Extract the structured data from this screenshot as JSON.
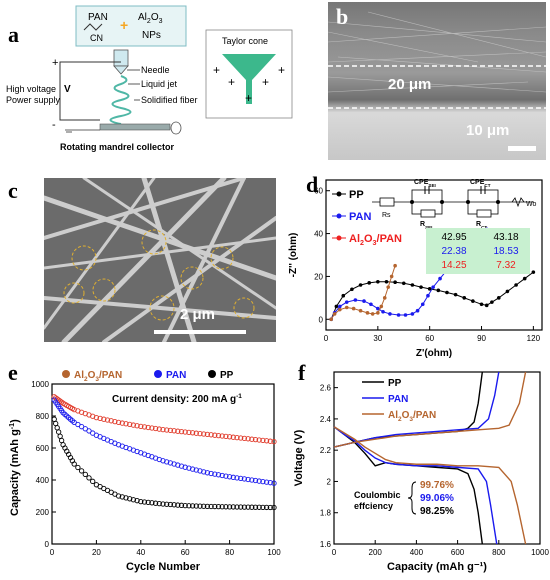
{
  "labels": {
    "a": "a",
    "b": "b",
    "c": "c",
    "d": "d",
    "e": "e",
    "f": "f"
  },
  "panel_a": {
    "pan": "PAN",
    "cn": "CN",
    "plus": "+",
    "al2o3": "Al",
    "al_sub": "2",
    "o": "O",
    "o_sub": "3",
    "nps": "NPs",
    "hv_line1": "High voltage",
    "hv_line2": "Power supply",
    "v": "V",
    "minus": "-",
    "needle": "Needle",
    "liquid_jet": "Liquid jet",
    "solidified_fiber": "Solidified fiber",
    "collector": "Rotating mandrel collector",
    "taylor_cone": "Taylor cone",
    "colors": {
      "pan_box_border": "#7fbcc4",
      "pan_box_bg": "#e7f4f5",
      "cone": "#3cb88c",
      "coil": "#4fb7a6"
    }
  },
  "panel_b": {
    "scale_20": "20 μm",
    "scale_10": "10 μm"
  },
  "panel_c": {
    "scale": "2 μm"
  },
  "panel_d": {
    "chart_data": {
      "type": "line",
      "xlabel": "Z'(ohm)",
      "ylabel": "-Z'' (ohm)",
      "xlim": [
        0,
        125
      ],
      "ylim": [
        -5,
        65
      ],
      "xticks": [
        0,
        30,
        60,
        90,
        120
      ],
      "yticks": [
        0,
        20,
        40,
        60
      ],
      "series": [
        {
          "name": "PP",
          "color": "#000000",
          "marker": "circle",
          "x": [
            3,
            6,
            10,
            15,
            20,
            25,
            30,
            35,
            40,
            45,
            50,
            55,
            60,
            65,
            70,
            75,
            80,
            85,
            90,
            93,
            96,
            100,
            105,
            110,
            115,
            120
          ],
          "y": [
            0,
            6,
            11,
            14,
            16,
            17,
            17.5,
            17.5,
            17.3,
            16.8,
            16,
            15,
            14.2,
            13.5,
            12.5,
            11.5,
            10,
            8.5,
            7,
            6.5,
            8,
            10,
            13,
            16,
            19,
            22
          ]
        },
        {
          "name": "PAN",
          "color": "#1a1aee",
          "marker": "circle",
          "x": [
            3,
            5,
            8,
            12,
            17,
            22,
            26,
            30,
            33,
            37,
            42,
            46,
            50,
            53,
            56,
            59,
            62,
            66,
            70,
            75,
            80,
            85,
            90,
            93
          ],
          "y": [
            0,
            3,
            6,
            8,
            9,
            8.5,
            7,
            5,
            3.5,
            2.5,
            2,
            2,
            2.5,
            4,
            7,
            11,
            15,
            19,
            23,
            27,
            31,
            35,
            39,
            42
          ]
        },
        {
          "name": "Al2O3/PAN",
          "color": "#b5652f",
          "marker": "circle",
          "x": [
            3,
            5,
            8,
            12,
            16,
            20,
            24,
            27,
            30,
            32,
            34,
            36,
            38,
            40
          ],
          "y": [
            0,
            2.5,
            4.5,
            5.5,
            5,
            4,
            3,
            2.5,
            3,
            6,
            10,
            15,
            20,
            25
          ]
        }
      ],
      "legend": [
        "PP",
        "PAN",
        "Al2O3/PAN"
      ]
    },
    "legend_pp": "PP",
    "legend_pan": "PAN",
    "legend_al": "Al",
    "legend_al_sub": "2",
    "legend_o": "O",
    "legend_o_sub": "3",
    "legend_rest": "/PAN",
    "circuit": {
      "rs": "Rs",
      "cpe_sei": "CPE",
      "sei_sub": "SEI",
      "cpe_ct": "CPE",
      "ct_sub": "CT",
      "r_sei": "R",
      "r_sei_sub": "SEI",
      "r_ct": "R",
      "r_ct_sub": "CT",
      "wo": "Wo"
    },
    "table": [
      {
        "sei": "42.95",
        "ct": "43.18",
        "color": "#000000"
      },
      {
        "sei": "22.38",
        "ct": "18.53",
        "color": "#1a1aee"
      },
      {
        "sei": "14.25",
        "ct": "7.32",
        "color": "#ee2020"
      }
    ]
  },
  "panel_e": {
    "chart_data": {
      "type": "scatter",
      "xlabel": "Cycle Number",
      "ylabel": "Capacity (mAh g⁻¹)",
      "xlim": [
        0,
        100
      ],
      "ylim": [
        0,
        1000
      ],
      "xticks": [
        0,
        20,
        40,
        60,
        80,
        100
      ],
      "yticks": [
        0,
        200,
        400,
        600,
        800,
        1000
      ],
      "annotation": "Current density: 200 mA g⁻¹",
      "series": [
        {
          "name": "Al2O3/PAN",
          "color": "#e03a2a",
          "x": [
            1,
            5,
            10,
            20,
            30,
            40,
            50,
            60,
            70,
            80,
            90,
            100
          ],
          "y": [
            920,
            880,
            840,
            790,
            760,
            735,
            715,
            700,
            685,
            670,
            655,
            640
          ]
        },
        {
          "name": "PAN",
          "color": "#1a1aee",
          "x": [
            1,
            5,
            10,
            20,
            30,
            40,
            50,
            60,
            70,
            80,
            90,
            100
          ],
          "y": [
            900,
            820,
            760,
            680,
            620,
            570,
            520,
            480,
            445,
            420,
            400,
            380
          ]
        },
        {
          "name": "PP",
          "color": "#000000",
          "x": [
            1,
            5,
            10,
            20,
            30,
            40,
            50,
            60,
            70,
            80,
            90,
            100
          ],
          "y": [
            780,
            620,
            500,
            370,
            300,
            265,
            250,
            240,
            235,
            232,
            230,
            228
          ]
        }
      ]
    },
    "legend_al": "Al",
    "legend_al_sub": "2",
    "legend_o": "O",
    "legend_o_sub": "3",
    "legend_rest": "/PAN",
    "legend_pan": "PAN",
    "legend_pp": "PP",
    "annotation_main": "Current density: 200 mA g",
    "annotation_sup": "-1",
    "ylabel_main": "Capacity (mAh g",
    "ylabel_sup": "-1",
    "ylabel_end": ")"
  },
  "panel_f": {
    "chart_data": {
      "type": "line",
      "xlabel": "Capacity (mAh g⁻¹)",
      "ylabel": "Voltage (V)",
      "xlim": [
        0,
        1000
      ],
      "ylim": [
        1.6,
        2.7
      ],
      "xticks": [
        0,
        200,
        400,
        600,
        800,
        1000
      ],
      "yticks": [
        1.6,
        1.8,
        2.0,
        2.2,
        2.4,
        2.6
      ],
      "series": [
        {
          "name": "PP",
          "color": "#000000",
          "discharge": {
            "x": [
              0,
              50,
              100,
              150,
              200,
              250,
              300,
              400,
              500,
              600,
              650,
              680,
              700,
              720
            ],
            "y": [
              2.35,
              2.3,
              2.25,
              2.18,
              2.1,
              2.12,
              2.11,
              2.1,
              2.09,
              2.08,
              2.05,
              1.95,
              1.8,
              1.6
            ]
          },
          "charge": {
            "x": [
              0,
              100,
              200,
              300,
              400,
              500,
              600,
              650,
              680,
              700,
              720
            ],
            "y": [
              2.22,
              2.25,
              2.28,
              2.29,
              2.3,
              2.31,
              2.32,
              2.34,
              2.38,
              2.5,
              2.7
            ]
          }
        },
        {
          "name": "PAN",
          "color": "#1a1aee",
          "discharge": {
            "x": [
              0,
              50,
              100,
              150,
              200,
              250,
              300,
              400,
              500,
              600,
              700,
              740,
              760,
              790
            ],
            "y": [
              2.35,
              2.3,
              2.26,
              2.2,
              2.15,
              2.12,
              2.11,
              2.1,
              2.1,
              2.09,
              2.08,
              2.0,
              1.85,
              1.6
            ]
          },
          "charge": {
            "x": [
              0,
              100,
              200,
              300,
              400,
              500,
              600,
              700,
              750,
              780,
              800
            ],
            "y": [
              2.22,
              2.25,
              2.28,
              2.3,
              2.31,
              2.32,
              2.33,
              2.34,
              2.4,
              2.55,
              2.7
            ]
          }
        },
        {
          "name": "Al2O3/PAN",
          "color": "#b5652f",
          "discharge": {
            "x": [
              0,
              50,
              100,
              150,
              200,
              250,
              300,
              400,
              500,
              600,
              700,
              800,
              860,
              890,
              930
            ],
            "y": [
              2.35,
              2.31,
              2.27,
              2.22,
              2.18,
              2.14,
              2.12,
              2.11,
              2.11,
              2.1,
              2.1,
              2.09,
              2.0,
              1.85,
              1.6
            ]
          },
          "charge": {
            "x": [
              0,
              100,
              200,
              300,
              400,
              500,
              600,
              700,
              800,
              850,
              900,
              930
            ],
            "y": [
              2.22,
              2.25,
              2.27,
              2.29,
              2.3,
              2.31,
              2.32,
              2.33,
              2.34,
              2.36,
              2.5,
              2.7
            ]
          }
        }
      ]
    },
    "legend_pp": "PP",
    "legend_pan": "PAN",
    "legend_al": "Al",
    "legend_al_sub": "2",
    "legend_o": "O",
    "legend_o_sub": "3",
    "legend_rest": "/PAN",
    "ce_line1": "Coulombic",
    "ce_line2": "effciency",
    "ce_values": [
      {
        "value": "99.76%",
        "color": "#b5652f"
      },
      {
        "value": "99.06%",
        "color": "#1a1aee"
      },
      {
        "value": "98.25%",
        "color": "#000000"
      }
    ]
  }
}
